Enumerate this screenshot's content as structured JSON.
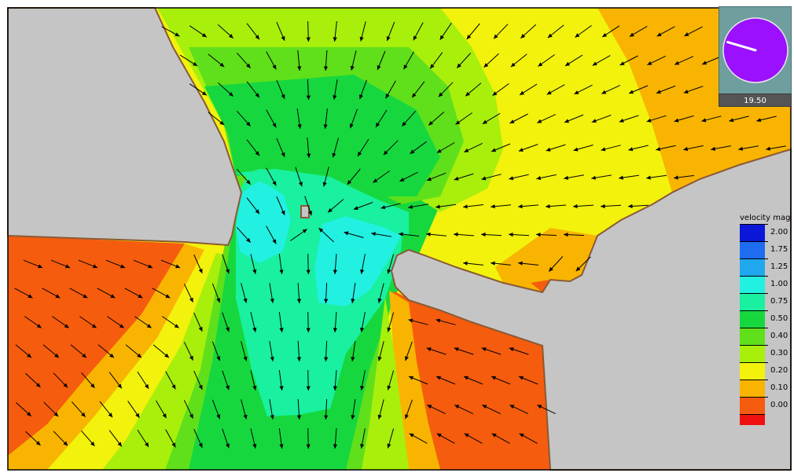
{
  "legend": {
    "title": "velocity mag",
    "entries": [
      {
        "label": "2.00",
        "color": "#0a17d6"
      },
      {
        "label": "1.75",
        "color": "#1e6cf0"
      },
      {
        "label": "1.25",
        "color": "#20a8ee"
      },
      {
        "label": "1.00",
        "color": "#22f0e0"
      },
      {
        "label": "0.75",
        "color": "#19f0a0"
      },
      {
        "label": "0.50",
        "color": "#16d83e"
      },
      {
        "label": "0.40",
        "color": "#5fe01a"
      },
      {
        "label": "0.30",
        "color": "#a8ef0c"
      },
      {
        "label": "0.20",
        "color": "#f2f20c"
      },
      {
        "label": "0.10",
        "color": "#f8b400"
      },
      {
        "label": "0.00",
        "color": "#f55c0d"
      },
      {
        "label": "",
        "color": "#f01010"
      }
    ]
  },
  "compass": {
    "value": "19.50",
    "needle_angle_deg": 197,
    "dial_color": "#9b10ff"
  },
  "colors": {
    "land": "#c5c5c5",
    "shore": "#8a5a36",
    "arrow": "#000000",
    "orange_red": "#f55c0d",
    "orange": "#f8b400",
    "yellow": "#f2f20c",
    "yellow_green": "#a8ef0c",
    "light_green": "#5fe01a",
    "green": "#16d83e",
    "sea_green": "#19f0a0",
    "cyan": "#22f0e0"
  }
}
